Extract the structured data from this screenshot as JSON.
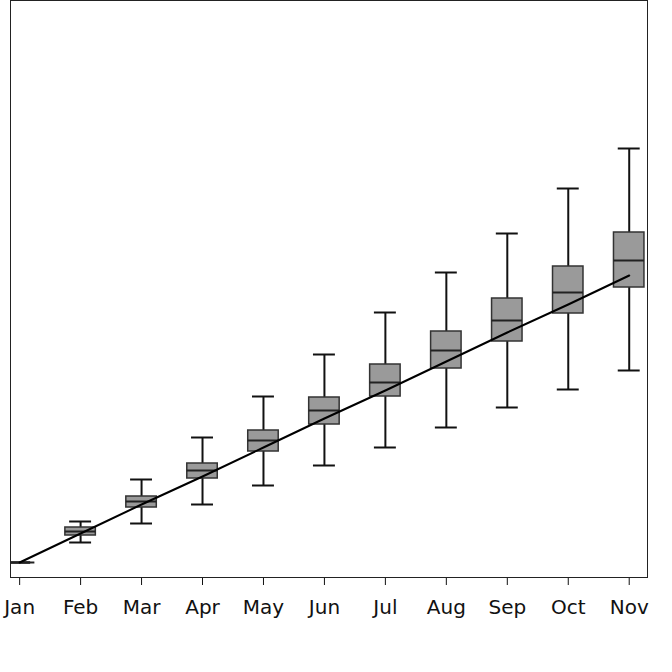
{
  "chart_data": {
    "type": "box",
    "categories": [
      "Jan",
      "Feb",
      "Mar",
      "Apr",
      "May",
      "Jun",
      "Jul",
      "Aug",
      "Sep",
      "Oct",
      "Nov"
    ],
    "min": [
      1.5,
      3.5,
      5.4,
      7.3,
      9.2,
      11.2,
      13.0,
      15.0,
      17.0,
      18.8,
      20.7
    ],
    "q1": [
      1.5,
      4.2,
      7.0,
      9.9,
      12.6,
      15.3,
      18.1,
      20.9,
      23.6,
      26.4,
      29.0
    ],
    "median": [
      1.5,
      4.6,
      7.6,
      10.7,
      13.7,
      16.7,
      19.5,
      22.7,
      25.7,
      28.5,
      31.7
    ],
    "q3": [
      1.5,
      5.0,
      8.1,
      11.4,
      14.7,
      18.0,
      21.3,
      24.6,
      27.9,
      31.1,
      34.5
    ],
    "max": [
      1.5,
      5.6,
      9.8,
      14.0,
      18.1,
      22.3,
      26.5,
      30.5,
      34.4,
      38.9,
      42.9
    ],
    "color": "#9a9a9a",
    "series": [
      {
        "type": "line",
        "color": "#000000",
        "values": [
          1.5,
          4.4,
          7.3,
          10.1,
          13.0,
          15.9,
          18.7,
          21.6,
          24.5,
          27.3,
          30.2
        ]
      }
    ],
    "ylim": [
      0,
      57.7
    ],
    "yticks": [],
    "grid": false,
    "tick_labels": "x"
  }
}
